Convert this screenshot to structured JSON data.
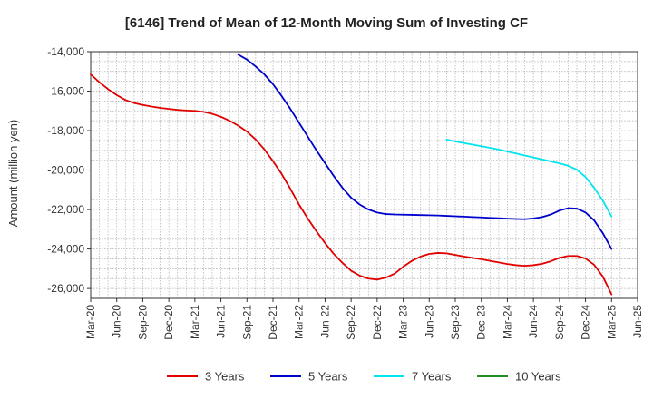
{
  "chart_data": {
    "type": "line",
    "title": "[6146]  Trend of Mean of 12-Month Moving Sum of Investing CF",
    "xlabel": "",
    "ylabel": "Amount (million yen)",
    "ylim": [
      -26500,
      -14000
    ],
    "yticks": [
      -14000,
      -16000,
      -18000,
      -20000,
      -22000,
      -24000,
      -26000
    ],
    "ytick_labels": [
      "-14,000",
      "-16,000",
      "-18,000",
      "-20,000",
      "-22,000",
      "-24,000",
      "-26,000"
    ],
    "x_start": "2020-03",
    "x_end": "2025-06",
    "xtick_labels": [
      "Mar-20",
      "Jun-20",
      "Sep-20",
      "Dec-20",
      "Mar-21",
      "Jun-21",
      "Sep-21",
      "Dec-21",
      "Mar-22",
      "Jun-22",
      "Sep-22",
      "Dec-22",
      "Mar-23",
      "Jun-23",
      "Sep-23",
      "Dec-23",
      "Mar-24",
      "Jun-24",
      "Sep-24",
      "Dec-24",
      "Mar-25",
      "Jun-25"
    ],
    "grid": true,
    "legend_position": "bottom",
    "series": [
      {
        "name": "3 Years",
        "color": "#e00000",
        "points": [
          [
            "2020-03",
            -15150
          ],
          [
            "2020-04",
            -15550
          ],
          [
            "2020-05",
            -15900
          ],
          [
            "2020-06",
            -16200
          ],
          [
            "2020-07",
            -16450
          ],
          [
            "2020-08",
            -16600
          ],
          [
            "2020-09",
            -16700
          ],
          [
            "2020-10",
            -16780
          ],
          [
            "2020-11",
            -16850
          ],
          [
            "2020-12",
            -16900
          ],
          [
            "2021-01",
            -16950
          ],
          [
            "2021-02",
            -16980
          ],
          [
            "2021-03",
            -17000
          ],
          [
            "2021-04",
            -17050
          ],
          [
            "2021-05",
            -17150
          ],
          [
            "2021-06",
            -17300
          ],
          [
            "2021-07",
            -17500
          ],
          [
            "2021-08",
            -17750
          ],
          [
            "2021-09",
            -18050
          ],
          [
            "2021-10",
            -18450
          ],
          [
            "2021-11",
            -18950
          ],
          [
            "2021-12",
            -19550
          ],
          [
            "2022-01",
            -20200
          ],
          [
            "2022-02",
            -20950
          ],
          [
            "2022-03",
            -21750
          ],
          [
            "2022-04",
            -22450
          ],
          [
            "2022-05",
            -23100
          ],
          [
            "2022-06",
            -23700
          ],
          [
            "2022-07",
            -24250
          ],
          [
            "2022-08",
            -24700
          ],
          [
            "2022-09",
            -25100
          ],
          [
            "2022-10",
            -25350
          ],
          [
            "2022-11",
            -25500
          ],
          [
            "2022-12",
            -25550
          ],
          [
            "2023-01",
            -25450
          ],
          [
            "2023-02",
            -25250
          ],
          [
            "2023-03",
            -24900
          ],
          [
            "2023-04",
            -24600
          ],
          [
            "2023-05",
            -24380
          ],
          [
            "2023-06",
            -24250
          ],
          [
            "2023-07",
            -24200
          ],
          [
            "2023-08",
            -24220
          ],
          [
            "2023-09",
            -24300
          ],
          [
            "2023-10",
            -24380
          ],
          [
            "2023-11",
            -24450
          ],
          [
            "2023-12",
            -24520
          ],
          [
            "2024-01",
            -24600
          ],
          [
            "2024-02",
            -24680
          ],
          [
            "2024-03",
            -24760
          ],
          [
            "2024-04",
            -24820
          ],
          [
            "2024-05",
            -24850
          ],
          [
            "2024-06",
            -24820
          ],
          [
            "2024-07",
            -24750
          ],
          [
            "2024-08",
            -24620
          ],
          [
            "2024-09",
            -24450
          ],
          [
            "2024-10",
            -24350
          ],
          [
            "2024-11",
            -24350
          ],
          [
            "2024-12",
            -24480
          ],
          [
            "2025-01",
            -24800
          ],
          [
            "2025-02",
            -25400
          ],
          [
            "2025-03",
            -26300
          ]
        ]
      },
      {
        "name": "5 Years",
        "color": "#0000cc",
        "points": [
          [
            "2021-08",
            -14150
          ],
          [
            "2021-09",
            -14400
          ],
          [
            "2021-10",
            -14750
          ],
          [
            "2021-11",
            -15150
          ],
          [
            "2021-12",
            -15650
          ],
          [
            "2022-01",
            -16250
          ],
          [
            "2022-02",
            -16900
          ],
          [
            "2022-03",
            -17600
          ],
          [
            "2022-04",
            -18300
          ],
          [
            "2022-05",
            -19000
          ],
          [
            "2022-06",
            -19650
          ],
          [
            "2022-07",
            -20300
          ],
          [
            "2022-08",
            -20900
          ],
          [
            "2022-09",
            -21400
          ],
          [
            "2022-10",
            -21750
          ],
          [
            "2022-11",
            -22000
          ],
          [
            "2022-12",
            -22150
          ],
          [
            "2023-01",
            -22230
          ],
          [
            "2023-02",
            -22250
          ],
          [
            "2023-03",
            -22260
          ],
          [
            "2023-04",
            -22270
          ],
          [
            "2023-05",
            -22280
          ],
          [
            "2023-06",
            -22290
          ],
          [
            "2023-07",
            -22300
          ],
          [
            "2023-08",
            -22320
          ],
          [
            "2023-09",
            -22340
          ],
          [
            "2023-10",
            -22360
          ],
          [
            "2023-11",
            -22380
          ],
          [
            "2023-12",
            -22400
          ],
          [
            "2024-01",
            -22420
          ],
          [
            "2024-02",
            -22440
          ],
          [
            "2024-03",
            -22460
          ],
          [
            "2024-04",
            -22480
          ],
          [
            "2024-05",
            -22490
          ],
          [
            "2024-06",
            -22450
          ],
          [
            "2024-07",
            -22380
          ],
          [
            "2024-08",
            -22250
          ],
          [
            "2024-09",
            -22050
          ],
          [
            "2024-10",
            -21930
          ],
          [
            "2024-11",
            -21950
          ],
          [
            "2024-12",
            -22150
          ],
          [
            "2025-01",
            -22550
          ],
          [
            "2025-02",
            -23200
          ],
          [
            "2025-03",
            -24000
          ]
        ]
      },
      {
        "name": "7 Years",
        "color": "#00e5ee",
        "points": [
          [
            "2023-08",
            -18450
          ],
          [
            "2023-09",
            -18550
          ],
          [
            "2023-10",
            -18630
          ],
          [
            "2023-11",
            -18710
          ],
          [
            "2023-12",
            -18790
          ],
          [
            "2024-01",
            -18870
          ],
          [
            "2024-02",
            -18960
          ],
          [
            "2024-03",
            -19060
          ],
          [
            "2024-04",
            -19160
          ],
          [
            "2024-05",
            -19260
          ],
          [
            "2024-06",
            -19360
          ],
          [
            "2024-07",
            -19460
          ],
          [
            "2024-08",
            -19560
          ],
          [
            "2024-09",
            -19660
          ],
          [
            "2024-10",
            -19780
          ],
          [
            "2024-11",
            -19980
          ],
          [
            "2024-12",
            -20350
          ],
          [
            "2025-01",
            -20900
          ],
          [
            "2025-02",
            -21550
          ],
          [
            "2025-03",
            -22350
          ]
        ]
      },
      {
        "name": "10 Years",
        "color": "#228b22",
        "points": []
      }
    ]
  }
}
